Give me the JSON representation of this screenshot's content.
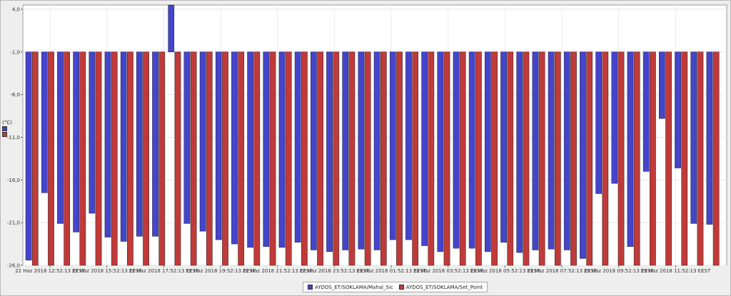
{
  "chart_data": {
    "type": "bar",
    "y_axis": {
      "ticks": [
        "4,0",
        "-1,0",
        "-6,0",
        "-11,0",
        "-16,0",
        "-21,0",
        "-26,0"
      ],
      "ylim": [
        -26,
        4.5
      ],
      "unit": "(°C)"
    },
    "x_tick_labels": [
      "22 Haz 2018 12:52:13 EEST",
      "22 Haz 2018 15:52:13 EEST",
      "22 Haz 2018 17:52:13 EEST",
      "22 Haz 2018 19:52:13 EEST",
      "22 Haz 2018 21:52:13 EEST",
      "22 Haz 2018 23:52:13 EEST",
      "23 Haz 2018 01:52:13 EEST",
      "23 Haz 2018 03:52:13 EEST",
      "23 Haz 2018 05:52:13 EEST",
      "23 Haz 2018 07:52:13 EEST",
      "23 Haz 2018 09:52:13 EEST",
      "23 Haz 2018 11:52:13 EEST"
    ],
    "baseline": -1.0,
    "grid": true,
    "legend_position": "bottom-center",
    "series": [
      {
        "name": "AYDOS_ET/SOKLAMA/Mahal_Sic",
        "color": "#4444cc",
        "values": [
          -25.4,
          -17.5,
          -21.1,
          -22.1,
          -19.9,
          -22.7,
          -23.2,
          -22.6,
          -22.6,
          4.5,
          -21.1,
          -22.0,
          -23.0,
          -23.5,
          -23.9,
          -23.8,
          -23.9,
          -23.3,
          -24.2,
          -24.4,
          -24.2,
          -24.1,
          -24.2,
          -23.0,
          -23.0,
          -23.7,
          -24.4,
          -24.0,
          -24.0,
          -24.4,
          -23.3,
          -24.5,
          -24.2,
          -24.1,
          -24.2,
          -25.2,
          -17.6,
          -16.4,
          -23.8,
          -15.0,
          -8.8,
          -14.6,
          -21.1,
          -21.2
        ]
      },
      {
        "name": "AYDOS_ET/SOKLAMA/Set_Point",
        "color": "#c03a3a",
        "values": [
          -26.0,
          -26.0,
          -26.0,
          -26.0,
          -26.0,
          -26.0,
          -26.0,
          -26.0,
          -26.0,
          -26.0,
          -26.0,
          -26.0,
          -26.0,
          -26.0,
          -26.0,
          -26.0,
          -26.0,
          -26.0,
          -26.0,
          -26.0,
          -26.0,
          -26.0,
          -26.0,
          -26.0,
          -26.0,
          -26.0,
          -26.0,
          -26.0,
          -26.0,
          -26.0,
          -26.0,
          -26.0,
          -26.0,
          -26.0,
          -26.0,
          -26.0,
          -26.0,
          -26.0,
          -26.0,
          -26.0,
          -26.0,
          -26.0,
          -26.0,
          -26.0
        ]
      }
    ]
  }
}
